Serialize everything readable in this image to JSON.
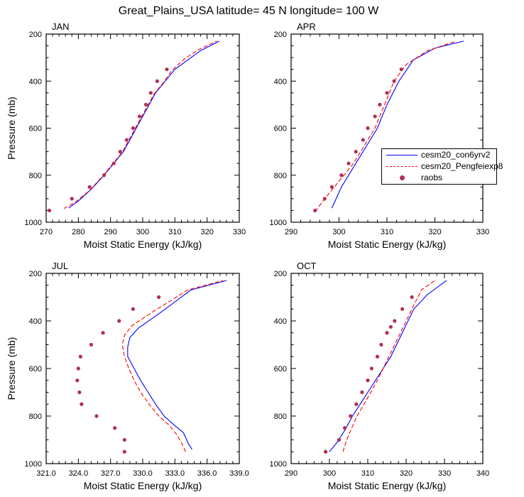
{
  "title": "Great_Plains_USA  latitude= 45 N longitude= 100 W",
  "colors": {
    "model1": "#0000ff",
    "model2": "#ff0000",
    "obs": "#b03050"
  },
  "legend": [
    {
      "name": "cesm20_con6yrv2",
      "style": "solid",
      "color": "#0000ff"
    },
    {
      "name": "cesm20_Pengfeiexp8",
      "style": "dashed",
      "color": "#ff0000"
    },
    {
      "name": "raobs",
      "style": "dot",
      "color": "#b03050"
    }
  ],
  "chart_data": [
    {
      "type": "line",
      "panel_label": "JAN",
      "xlabel": "Moist Static Energy (kJ/kg)",
      "ylabel": "Pressure (mb)",
      "xlim": [
        270,
        330
      ],
      "xticks": [
        270,
        280,
        290,
        300,
        310,
        320,
        330
      ],
      "xtick_labels": [
        "270",
        "280",
        "290",
        "300",
        "310",
        "320",
        "330"
      ],
      "ylim": [
        200,
        1000
      ],
      "yticks": [
        200,
        400,
        600,
        800,
        1000
      ],
      "y_reversed": true,
      "series": [
        {
          "name": "cesm20_con6yrv2",
          "style": "solid",
          "x": [
            277,
            280,
            284,
            288,
            291,
            294,
            296,
            298,
            300,
            302,
            304,
            307,
            310,
            314,
            318,
            323.8
          ],
          "y": [
            940,
            910,
            860,
            800,
            750,
            700,
            650,
            600,
            550,
            500,
            450,
            400,
            350,
            310,
            270,
            230
          ]
        },
        {
          "name": "cesm20_Pengfeiexp8",
          "style": "dashed",
          "x": [
            275.5,
            279,
            283.5,
            287.5,
            290.5,
            293.5,
            295.5,
            297.5,
            299.5,
            301.5,
            303.5,
            306.5,
            309,
            313,
            317.5,
            323
          ],
          "y": [
            942,
            915,
            865,
            805,
            755,
            705,
            655,
            605,
            555,
            505,
            455,
            405,
            355,
            305,
            265,
            230
          ]
        },
        {
          "name": "raobs",
          "style": "dot",
          "x": [
            271,
            278,
            283.5,
            288,
            291,
            293,
            295,
            297,
            299,
            301,
            302.5,
            304.5,
            307.5
          ],
          "y": [
            950,
            900,
            850,
            800,
            750,
            700,
            650,
            600,
            550,
            500,
            450,
            400,
            350
          ]
        }
      ]
    },
    {
      "type": "line",
      "panel_label": "APR",
      "xlabel": "Moist Static Energy (kJ/kg)",
      "ylabel": "",
      "xlim": [
        290,
        330
      ],
      "xticks": [
        290,
        300,
        310,
        320,
        330
      ],
      "xtick_labels": [
        "290",
        "300",
        "310",
        "320",
        "330"
      ],
      "ylim": [
        200,
        1000
      ],
      "yticks": [
        200,
        400,
        600,
        800,
        1000
      ],
      "y_reversed": true,
      "series": [
        {
          "name": "cesm20_con6yrv2",
          "style": "solid",
          "x": [
            298.5,
            300.5,
            302,
            303.5,
            305,
            306.5,
            308,
            310,
            312.5,
            315.5,
            320,
            326
          ],
          "y": [
            940,
            850,
            800,
            750,
            700,
            650,
            600,
            500,
            400,
            310,
            260,
            230
          ]
        },
        {
          "name": "cesm20_Pengfeiexp8",
          "style": "dashed",
          "x": [
            295,
            297,
            299,
            301,
            303,
            304.5,
            306,
            307.5,
            309.5,
            311.5,
            314,
            318.5,
            324.5
          ],
          "y": [
            955,
            900,
            850,
            800,
            750,
            700,
            650,
            600,
            500,
            400,
            330,
            270,
            230
          ]
        },
        {
          "name": "raobs",
          "style": "dot",
          "x": [
            295,
            297,
            298.5,
            300.5,
            302,
            303.5,
            305,
            306,
            307.5,
            308.5,
            310,
            311.5,
            313
          ],
          "y": [
            950,
            900,
            850,
            800,
            750,
            700,
            650,
            600,
            550,
            500,
            450,
            400,
            350
          ]
        }
      ]
    },
    {
      "type": "line",
      "panel_label": "JUL",
      "xlabel": "Moist Static Energy (kJ/kg)",
      "ylabel": "Pressure (mb)",
      "xlim": [
        321,
        339
      ],
      "xticks": [
        321,
        324,
        327,
        330,
        333,
        336,
        339
      ],
      "xtick_labels": [
        "321.0",
        "324.0",
        "327.0",
        "330.0",
        "333.0",
        "336.0",
        "339.0"
      ],
      "ylim": [
        200,
        1000
      ],
      "yticks": [
        200,
        400,
        600,
        800,
        1000
      ],
      "y_reversed": true,
      "series": [
        {
          "name": "cesm20_con6yrv2",
          "style": "solid",
          "x": [
            334.6,
            334.3,
            333.8,
            333,
            332,
            331.2,
            330.5,
            329.8,
            329.2,
            328.6,
            328.6,
            328.8,
            329.6,
            331.5,
            334.5,
            337.8
          ],
          "y": [
            940,
            920,
            870,
            840,
            800,
            750,
            700,
            650,
            600,
            550,
            510,
            470,
            430,
            370,
            270,
            230
          ]
        },
        {
          "name": "cesm20_Pengfeiexp8",
          "style": "dashed",
          "x": [
            334,
            333.7,
            333.2,
            332.5,
            331.5,
            330.6,
            329.8,
            329.2,
            328.7,
            328.3,
            328.1,
            328.3,
            329,
            331,
            334.2,
            337.5
          ],
          "y": [
            950,
            920,
            880,
            840,
            800,
            750,
            700,
            650,
            600,
            550,
            500,
            460,
            420,
            360,
            270,
            230
          ]
        },
        {
          "name": "raobs",
          "style": "dot",
          "x": [
            328.3,
            328.3,
            327.4,
            325.7,
            324.3,
            324.1,
            323.9,
            324,
            324.2,
            325.2,
            326.3,
            327.8,
            329.1,
            331.5
          ],
          "y": [
            950,
            900,
            850,
            800,
            750,
            700,
            650,
            600,
            550,
            500,
            450,
            400,
            350,
            300
          ]
        }
      ]
    },
    {
      "type": "line",
      "panel_label": "OCT",
      "xlabel": "Moist Static Energy (kJ/kg)",
      "ylabel": "",
      "xlim": [
        290,
        340
      ],
      "xticks": [
        290,
        300,
        310,
        320,
        330,
        340
      ],
      "xtick_labels": [
        "290",
        "300",
        "310",
        "320",
        "330",
        "340"
      ],
      "ylim": [
        200,
        1000
      ],
      "yticks": [
        200,
        400,
        600,
        800,
        1000
      ],
      "y_reversed": true,
      "series": [
        {
          "name": "cesm20_con6yrv2",
          "style": "solid",
          "x": [
            300,
            302,
            304,
            306,
            308,
            310,
            312,
            314,
            316,
            319,
            322,
            325.5,
            330.5
          ],
          "y": [
            950,
            910,
            860,
            800,
            750,
            700,
            650,
            600,
            550,
            450,
            350,
            290,
            230
          ]
        },
        {
          "name": "cesm20_Pengfeiexp8",
          "style": "dashed",
          "x": [
            303.5,
            304.5,
            305.8,
            307.2,
            309,
            310.8,
            312.5,
            314,
            315.5,
            318.5,
            321.5,
            324,
            327.5
          ],
          "y": [
            950,
            900,
            850,
            800,
            750,
            700,
            650,
            600,
            550,
            450,
            350,
            270,
            230
          ]
        },
        {
          "name": "raobs",
          "style": "dot",
          "x": [
            299,
            302.5,
            304,
            305.5,
            307,
            308.5,
            310,
            311,
            312.5,
            313.5,
            315,
            316,
            317,
            319,
            321.5
          ],
          "y": [
            950,
            900,
            850,
            800,
            750,
            700,
            650,
            600,
            550,
            500,
            450,
            425,
            400,
            350,
            300
          ]
        }
      ]
    }
  ]
}
